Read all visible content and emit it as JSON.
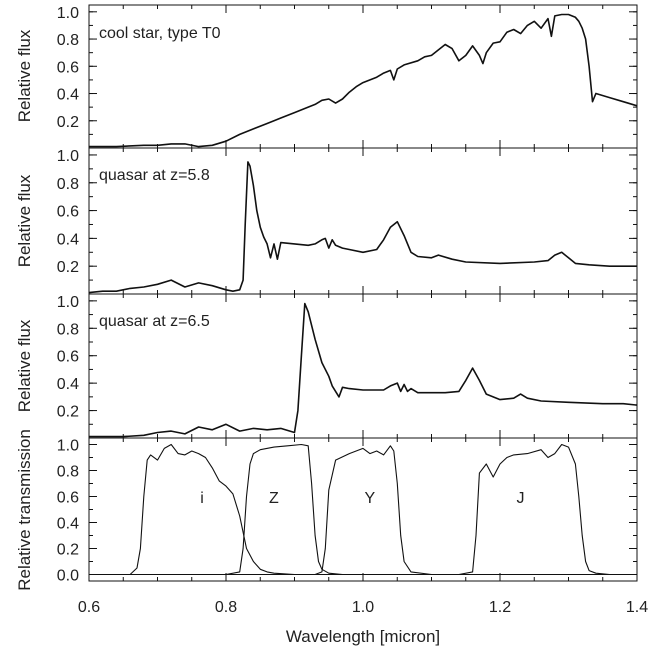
{
  "chart_data": [
    {
      "type": "line",
      "ylabel": "Relative flux",
      "annotation": "cool star, type T0",
      "xlim": [
        0.6,
        1.4
      ],
      "ylim": [
        0.0,
        1.05
      ],
      "yticks": [
        "0.2",
        "0.4",
        "0.6",
        "0.8",
        "1.0"
      ],
      "ytick_values": [
        0.2,
        0.4,
        0.6,
        0.8,
        1.0
      ],
      "series": [
        {
          "x": [
            0.6,
            0.64,
            0.68,
            0.7,
            0.72,
            0.74,
            0.76,
            0.78,
            0.8,
            0.82,
            0.84,
            0.86,
            0.87,
            0.88,
            0.9,
            0.92,
            0.93,
            0.94,
            0.95,
            0.96,
            0.97,
            0.98,
            0.99,
            1.0,
            1.02,
            1.03,
            1.04,
            1.045,
            1.05,
            1.06,
            1.08,
            1.09,
            1.1,
            1.11,
            1.12,
            1.13,
            1.14,
            1.15,
            1.16,
            1.17,
            1.175,
            1.18,
            1.19,
            1.2,
            1.21,
            1.22,
            1.23,
            1.24,
            1.25,
            1.26,
            1.27,
            1.275,
            1.28,
            1.29,
            1.3,
            1.31,
            1.315,
            1.32,
            1.325,
            1.33,
            1.335,
            1.34,
            1.36,
            1.38,
            1.4
          ],
          "y": [
            0.01,
            0.01,
            0.02,
            0.02,
            0.03,
            0.03,
            0.01,
            0.02,
            0.05,
            0.1,
            0.14,
            0.18,
            0.2,
            0.22,
            0.26,
            0.3,
            0.32,
            0.35,
            0.36,
            0.33,
            0.36,
            0.41,
            0.45,
            0.48,
            0.52,
            0.55,
            0.57,
            0.5,
            0.58,
            0.61,
            0.64,
            0.67,
            0.68,
            0.72,
            0.76,
            0.73,
            0.64,
            0.68,
            0.75,
            0.68,
            0.62,
            0.7,
            0.77,
            0.78,
            0.85,
            0.87,
            0.84,
            0.9,
            0.93,
            0.88,
            0.95,
            0.82,
            0.97,
            0.98,
            0.98,
            0.96,
            0.93,
            0.88,
            0.8,
            0.6,
            0.34,
            0.4,
            0.37,
            0.34,
            0.31
          ]
        }
      ]
    },
    {
      "type": "line",
      "ylabel": "Relative flux",
      "annotation": "quasar at z=5.8",
      "xlim": [
        0.6,
        1.4
      ],
      "ylim": [
        0.0,
        1.05
      ],
      "yticks": [
        "0.2",
        "0.4",
        "0.6",
        "0.8",
        "1.0"
      ],
      "ytick_values": [
        0.2,
        0.4,
        0.6,
        0.8,
        1.0
      ],
      "series": [
        {
          "x": [
            0.6,
            0.62,
            0.64,
            0.66,
            0.68,
            0.7,
            0.72,
            0.74,
            0.76,
            0.78,
            0.8,
            0.81,
            0.82,
            0.825,
            0.828,
            0.832,
            0.835,
            0.84,
            0.845,
            0.85,
            0.855,
            0.86,
            0.865,
            0.87,
            0.875,
            0.88,
            0.9,
            0.92,
            0.93,
            0.94,
            0.945,
            0.95,
            0.955,
            0.96,
            0.97,
            0.98,
            1.0,
            1.02,
            1.03,
            1.04,
            1.05,
            1.06,
            1.07,
            1.08,
            1.1,
            1.11,
            1.13,
            1.15,
            1.2,
            1.25,
            1.27,
            1.28,
            1.29,
            1.3,
            1.31,
            1.33,
            1.36,
            1.4
          ],
          "y": [
            0.01,
            0.02,
            0.02,
            0.04,
            0.05,
            0.07,
            0.1,
            0.05,
            0.08,
            0.06,
            0.03,
            0.02,
            0.03,
            0.1,
            0.5,
            0.95,
            0.92,
            0.78,
            0.6,
            0.48,
            0.41,
            0.36,
            0.26,
            0.36,
            0.25,
            0.37,
            0.36,
            0.35,
            0.36,
            0.39,
            0.4,
            0.33,
            0.39,
            0.35,
            0.33,
            0.32,
            0.3,
            0.32,
            0.39,
            0.48,
            0.52,
            0.42,
            0.3,
            0.27,
            0.26,
            0.28,
            0.25,
            0.23,
            0.22,
            0.23,
            0.24,
            0.28,
            0.3,
            0.26,
            0.22,
            0.21,
            0.2,
            0.2
          ]
        }
      ]
    },
    {
      "type": "line",
      "ylabel": "Relative flux",
      "annotation": "quasar at z=6.5",
      "xlim": [
        0.6,
        1.4
      ],
      "ylim": [
        0.0,
        1.05
      ],
      "yticks": [
        "0.2",
        "0.4",
        "0.6",
        "0.8",
        "1.0"
      ],
      "ytick_values": [
        0.2,
        0.4,
        0.6,
        0.8,
        1.0
      ],
      "series": [
        {
          "x": [
            0.6,
            0.65,
            0.68,
            0.7,
            0.72,
            0.74,
            0.76,
            0.78,
            0.8,
            0.82,
            0.84,
            0.86,
            0.88,
            0.9,
            0.905,
            0.91,
            0.915,
            0.92,
            0.93,
            0.94,
            0.95,
            0.955,
            0.96,
            0.965,
            0.97,
            0.98,
            1.0,
            1.03,
            1.04,
            1.05,
            1.055,
            1.06,
            1.065,
            1.07,
            1.08,
            1.1,
            1.12,
            1.14,
            1.15,
            1.16,
            1.17,
            1.18,
            1.2,
            1.22,
            1.23,
            1.24,
            1.26,
            1.3,
            1.35,
            1.38,
            1.4
          ],
          "y": [
            0.01,
            0.01,
            0.02,
            0.04,
            0.05,
            0.03,
            0.08,
            0.06,
            0.1,
            0.05,
            0.07,
            0.06,
            0.07,
            0.04,
            0.2,
            0.6,
            0.98,
            0.92,
            0.72,
            0.55,
            0.45,
            0.38,
            0.34,
            0.3,
            0.37,
            0.36,
            0.35,
            0.35,
            0.38,
            0.4,
            0.34,
            0.39,
            0.34,
            0.36,
            0.33,
            0.33,
            0.33,
            0.34,
            0.42,
            0.51,
            0.42,
            0.32,
            0.28,
            0.29,
            0.32,
            0.29,
            0.27,
            0.26,
            0.25,
            0.25,
            0.24
          ]
        }
      ]
    },
    {
      "type": "line",
      "ylabel": "Relative transmission",
      "xlabel": "Wavelength [micron]",
      "xlim": [
        0.6,
        1.4
      ],
      "ylim": [
        -0.05,
        1.05
      ],
      "xticks": [
        "0.6",
        "0.8",
        "1.0",
        "1.2",
        "1.4"
      ],
      "xtick_values": [
        0.6,
        0.8,
        1.0,
        1.2,
        1.4
      ],
      "yticks": [
        "0.0",
        "0.2",
        "0.4",
        "0.6",
        "0.8",
        "1.0"
      ],
      "ytick_values": [
        0.0,
        0.2,
        0.4,
        0.6,
        0.8,
        1.0
      ],
      "band_labels": [
        {
          "text": "i",
          "x": 0.765,
          "y": 0.55
        },
        {
          "text": "Z",
          "x": 0.87,
          "y": 0.55
        },
        {
          "text": "Y",
          "x": 1.01,
          "y": 0.55
        },
        {
          "text": "J",
          "x": 1.23,
          "y": 0.55
        }
      ],
      "series": [
        {
          "name": "i",
          "x": [
            0.6,
            0.66,
            0.67,
            0.675,
            0.68,
            0.685,
            0.69,
            0.7,
            0.71,
            0.72,
            0.73,
            0.74,
            0.75,
            0.76,
            0.77,
            0.78,
            0.79,
            0.8,
            0.81,
            0.82,
            0.83,
            0.84,
            0.85,
            0.86,
            0.87,
            0.9,
            0.95,
            1.0,
            1.4
          ],
          "y": [
            0.0,
            0.0,
            0.05,
            0.2,
            0.6,
            0.88,
            0.92,
            0.88,
            0.97,
            1.0,
            0.93,
            0.92,
            0.95,
            0.93,
            0.9,
            0.82,
            0.72,
            0.68,
            0.62,
            0.45,
            0.2,
            0.1,
            0.04,
            0.02,
            0.01,
            0.0,
            0.0,
            0.0,
            0.0
          ]
        },
        {
          "name": "Z",
          "x": [
            0.6,
            0.8,
            0.82,
            0.825,
            0.83,
            0.835,
            0.84,
            0.85,
            0.87,
            0.89,
            0.91,
            0.92,
            0.925,
            0.93,
            0.935,
            0.94,
            0.95,
            0.97,
            1.4
          ],
          "y": [
            0.0,
            0.0,
            0.02,
            0.2,
            0.6,
            0.85,
            0.93,
            0.96,
            0.98,
            0.99,
            1.0,
            0.99,
            0.7,
            0.3,
            0.1,
            0.04,
            0.01,
            0.0,
            0.0
          ]
        },
        {
          "name": "Y",
          "x": [
            0.6,
            0.93,
            0.94,
            0.945,
            0.95,
            0.96,
            0.98,
            1.0,
            1.01,
            1.02,
            1.03,
            1.04,
            1.045,
            1.05,
            1.055,
            1.06,
            1.07,
            1.1,
            1.4
          ],
          "y": [
            0.0,
            0.0,
            0.02,
            0.2,
            0.65,
            0.88,
            0.93,
            0.97,
            0.93,
            0.95,
            0.92,
            0.99,
            0.95,
            0.7,
            0.3,
            0.1,
            0.02,
            0.0,
            0.0
          ]
        },
        {
          "name": "J",
          "x": [
            0.6,
            1.14,
            1.16,
            1.165,
            1.17,
            1.18,
            1.19,
            1.2,
            1.21,
            1.22,
            1.24,
            1.26,
            1.27,
            1.28,
            1.29,
            1.3,
            1.31,
            1.315,
            1.32,
            1.325,
            1.33,
            1.34,
            1.36,
            1.4
          ],
          "y": [
            0.0,
            0.0,
            0.02,
            0.3,
            0.78,
            0.85,
            0.75,
            0.85,
            0.9,
            0.92,
            0.93,
            0.96,
            0.9,
            0.93,
            1.0,
            0.98,
            0.85,
            0.6,
            0.3,
            0.1,
            0.03,
            0.01,
            0.0,
            0.0
          ]
        }
      ]
    }
  ]
}
